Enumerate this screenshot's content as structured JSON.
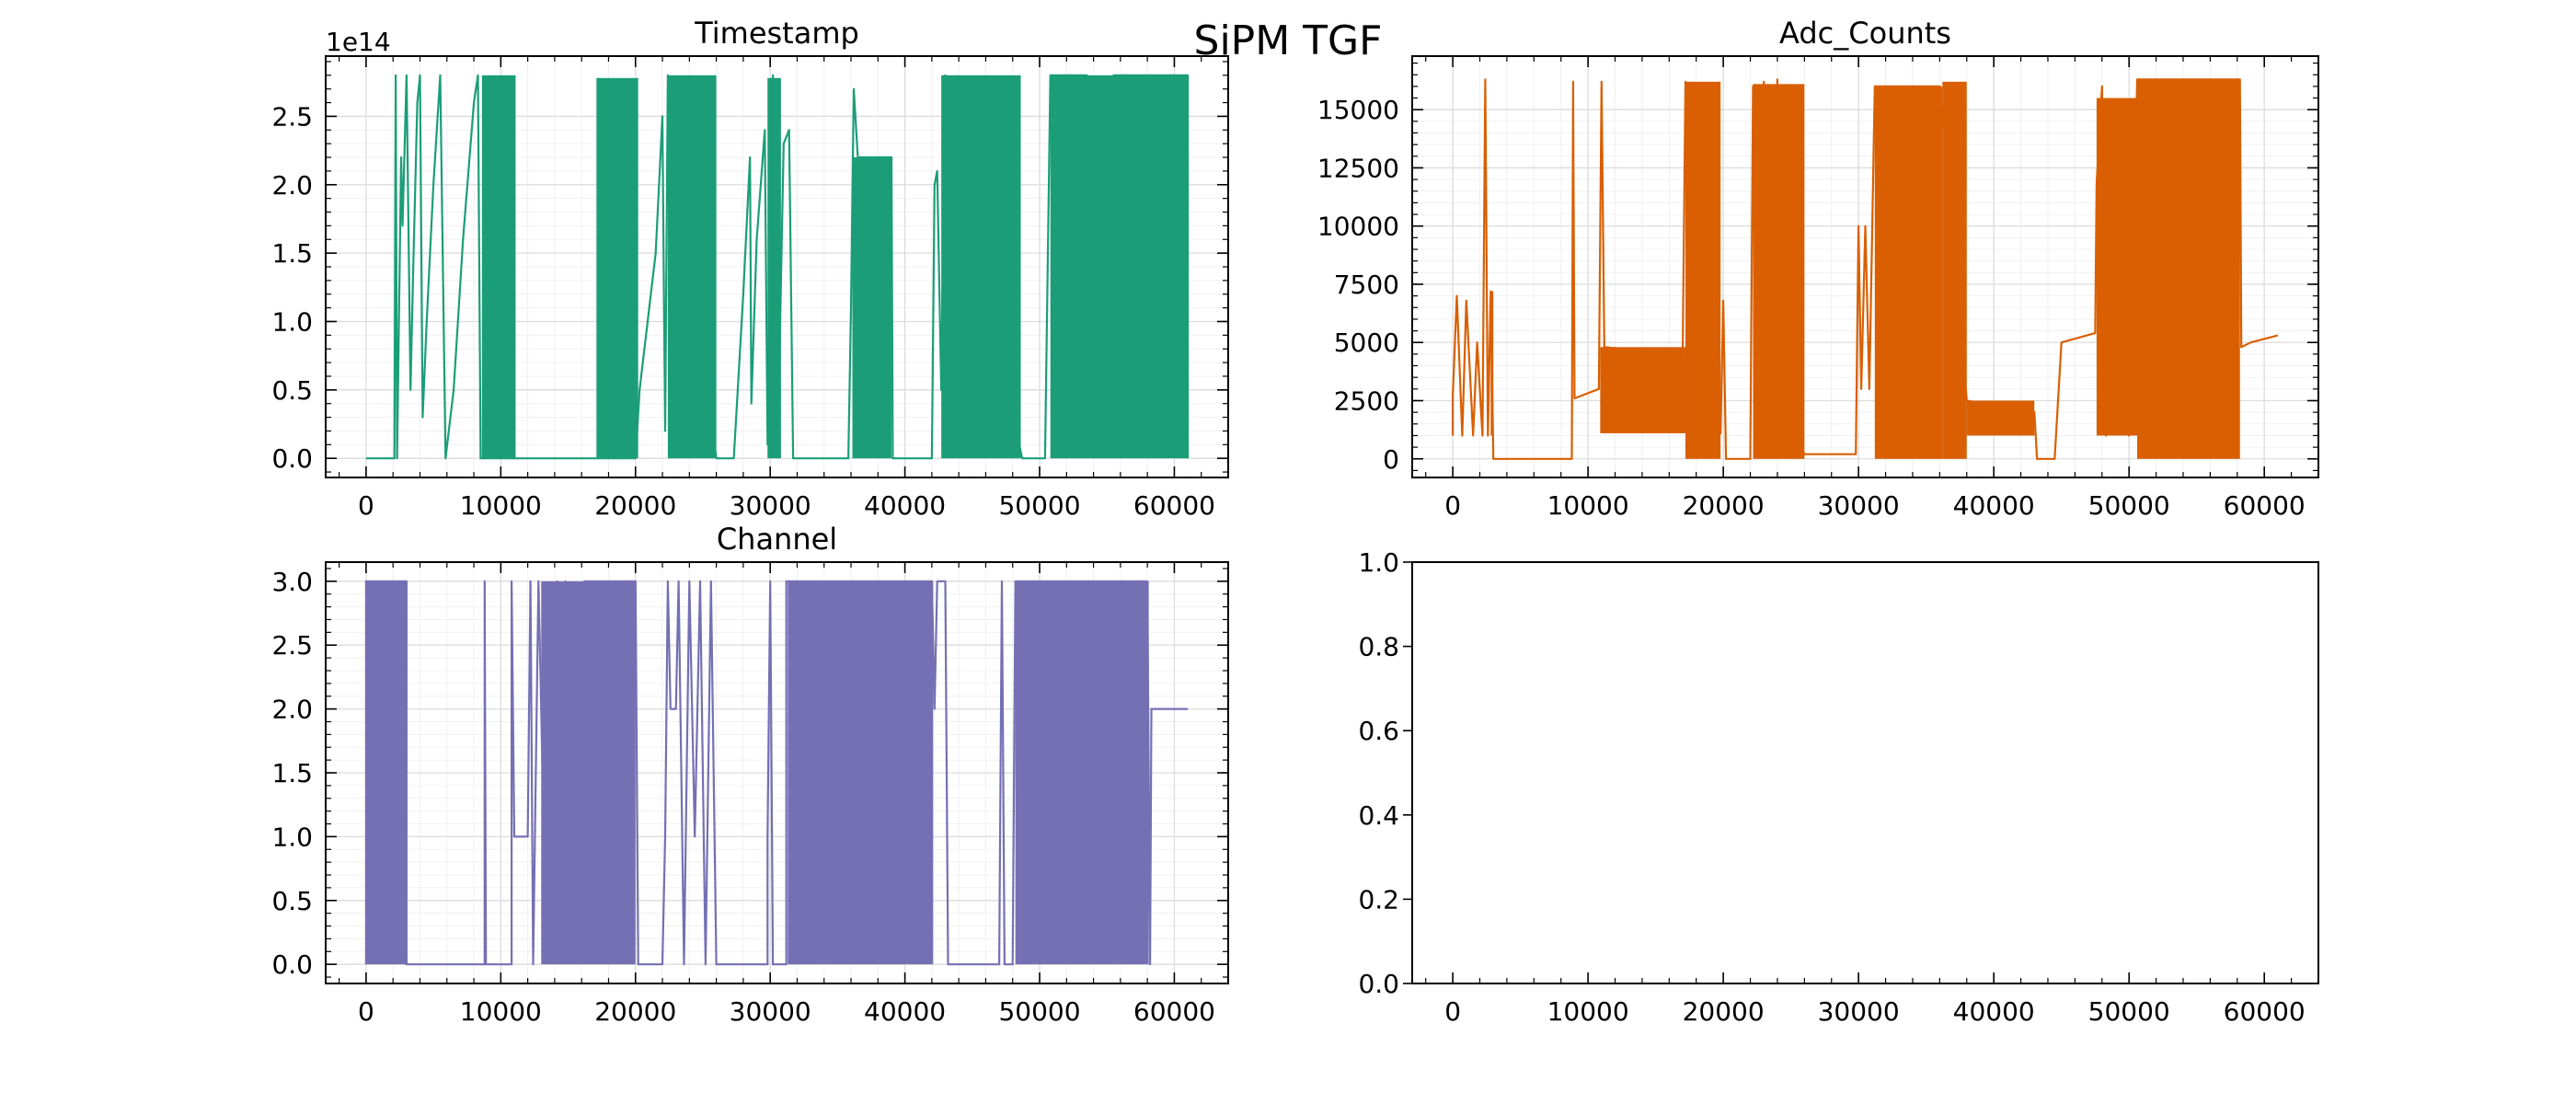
{
  "figure_title": "SiPM TGF",
  "colors": {
    "timestamp": "#1b9e77",
    "adc": "#d95f02",
    "channel": "#7570b3"
  },
  "chart_data": [
    {
      "id": "timestamp",
      "type": "line",
      "title": "Timestamp",
      "offset_label": "1e14",
      "xlim": [
        -3000,
        64000
      ],
      "ylim": [
        -0.14,
        2.94
      ],
      "xticks": [
        0,
        10000,
        20000,
        30000,
        40000,
        50000,
        60000
      ],
      "xticklabels": [
        "0",
        "10000",
        "20000",
        "30000",
        "40000",
        "50000",
        "60000"
      ],
      "yticks": [
        0,
        0.5,
        1.0,
        1.5,
        2.0,
        2.5
      ],
      "yticklabels": [
        "0.0",
        "0.5",
        "1.0",
        "1.5",
        "2.0",
        "2.5"
      ],
      "grid": true,
      "series": [
        {
          "values": [
            [
              0,
              0
            ],
            [
              2100,
              0
            ],
            [
              2200,
              2.8
            ],
            [
              2300,
              0
            ],
            [
              2600,
              2.2
            ],
            [
              2700,
              1.7
            ],
            [
              3000,
              2.8
            ],
            [
              3300,
              0.5
            ],
            [
              3500,
              1.4
            ],
            [
              3800,
              2.6
            ],
            [
              4000,
              2.8
            ],
            [
              4200,
              0.3
            ],
            [
              4500,
              1.0
            ],
            [
              5000,
              2.0
            ],
            [
              5500,
              2.8
            ],
            [
              5900,
              0
            ],
            [
              6500,
              0.5
            ],
            [
              7200,
              1.6
            ],
            [
              8000,
              2.6
            ],
            [
              8300,
              2.8
            ],
            [
              8500,
              0
            ],
            [
              11100,
              0
            ],
            [
              17000,
              0
            ],
            [
              20000,
              0
            ],
            [
              20300,
              0.5
            ],
            [
              21500,
              1.5
            ],
            [
              22000,
              2.5
            ],
            [
              22200,
              0.2
            ],
            [
              22400,
              2.8
            ],
            [
              26000,
              0
            ],
            [
              27300,
              0
            ],
            [
              28000,
              1.2
            ],
            [
              28500,
              2.2
            ],
            [
              28600,
              0.4
            ],
            [
              29000,
              1.6
            ],
            [
              29600,
              2.4
            ],
            [
              29800,
              0.1
            ],
            [
              30200,
              2.8
            ],
            [
              30600,
              0.3
            ],
            [
              31000,
              2.3
            ],
            [
              31400,
              2.4
            ],
            [
              31700,
              0
            ],
            [
              35800,
              0
            ],
            [
              36000,
              1.1
            ],
            [
              36200,
              2.7
            ],
            [
              36500,
              2.2
            ],
            [
              39000,
              2.2
            ],
            [
              39100,
              0
            ],
            [
              42000,
              0
            ],
            [
              42200,
              2.0
            ],
            [
              42400,
              2.1
            ],
            [
              42700,
              0.5
            ],
            [
              43000,
              2.8
            ],
            [
              48700,
              0
            ],
            [
              50400,
              0
            ],
            [
              50800,
              2.8
            ],
            [
              53500,
              2.8
            ],
            [
              54000,
              2.2
            ],
            [
              55200,
              2.2
            ],
            [
              55500,
              2.8
            ],
            [
              61000,
              2.8
            ],
            [
              61000,
              0
            ]
          ],
          "bands": [
            [
              8600,
              11100,
              0,
              2.8
            ],
            [
              17100,
              20200,
              0,
              2.78
            ],
            [
              22400,
              26000,
              0,
              2.8
            ],
            [
              29800,
              30800,
              0,
              2.78
            ],
            [
              36100,
              39000,
              0,
              2.2
            ],
            [
              42700,
              48600,
              0,
              2.8
            ],
            [
              50800,
              61000,
              0,
              2.8
            ]
          ]
        }
      ]
    },
    {
      "id": "adc",
      "type": "line",
      "title": "Adc_Counts",
      "xlim": [
        -3000,
        64000
      ],
      "ylim": [
        -800,
        17300
      ],
      "xticks": [
        0,
        10000,
        20000,
        30000,
        40000,
        50000,
        60000
      ],
      "xticklabels": [
        "0",
        "10000",
        "20000",
        "30000",
        "40000",
        "50000",
        "60000"
      ],
      "yticks": [
        0,
        2500,
        5000,
        7500,
        10000,
        12500,
        15000
      ],
      "yticklabels": [
        "0",
        "2500",
        "5000",
        "7500",
        "10000",
        "12500",
        "15000"
      ],
      "grid": true,
      "series": [
        {
          "values": [
            [
              0,
              1000
            ],
            [
              0,
              2700
            ],
            [
              300,
              7000
            ],
            [
              700,
              1000
            ],
            [
              1000,
              6800
            ],
            [
              1500,
              1000
            ],
            [
              1800,
              5000
            ],
            [
              2200,
              1000
            ],
            [
              2400,
              16300
            ],
            [
              2600,
              1000
            ],
            [
              2800,
              7200
            ],
            [
              3000,
              0
            ],
            [
              8800,
              0
            ],
            [
              8900,
              16200
            ],
            [
              9000,
              2600
            ],
            [
              10800,
              3000
            ],
            [
              11000,
              16200
            ],
            [
              11200,
              4800
            ],
            [
              17000,
              4500
            ],
            [
              17200,
              16200
            ],
            [
              19800,
              1100
            ],
            [
              20000,
              6800
            ],
            [
              20200,
              0
            ],
            [
              22000,
              0
            ],
            [
              22200,
              16000
            ],
            [
              22400,
              5500
            ],
            [
              23000,
              16200
            ],
            [
              23400,
              800
            ],
            [
              24000,
              16300
            ],
            [
              24500,
              5000
            ],
            [
              25000,
              15500
            ],
            [
              25500,
              1000
            ],
            [
              26000,
              200
            ],
            [
              29800,
              200
            ],
            [
              30000,
              10000
            ],
            [
              30200,
              3000
            ],
            [
              30500,
              10000
            ],
            [
              30800,
              3000
            ],
            [
              31200,
              16000
            ],
            [
              36000,
              16000
            ],
            [
              38000,
              2500
            ],
            [
              43000,
              2000
            ],
            [
              43200,
              0
            ],
            [
              44500,
              0
            ],
            [
              45000,
              5000
            ],
            [
              47500,
              5400
            ],
            [
              47600,
              11800
            ],
            [
              48000,
              16000
            ],
            [
              48300,
              1000
            ],
            [
              49500,
              8700
            ],
            [
              50000,
              1000
            ],
            [
              50600,
              16300
            ],
            [
              58200,
              16300
            ],
            [
              58300,
              4800
            ],
            [
              59000,
              5000
            ],
            [
              61000,
              5300
            ]
          ],
          "bands": [
            [
              2800,
              3000,
              1000,
              7200
            ],
            [
              10900,
              17200,
              1100,
              4800
            ],
            [
              17200,
              19800,
              0,
              16200
            ],
            [
              22200,
              26000,
              0,
              16100
            ],
            [
              31200,
              36200,
              0,
              16000
            ],
            [
              36200,
              38000,
              0,
              16200
            ],
            [
              38000,
              43000,
              1000,
              2500
            ],
            [
              47600,
              50600,
              1000,
              15500
            ],
            [
              50600,
              58200,
              0,
              16300
            ]
          ]
        }
      ]
    },
    {
      "id": "channel",
      "type": "line",
      "title": "Channel",
      "xlim": [
        -3000,
        64000
      ],
      "ylim": [
        -0.15,
        3.15
      ],
      "xticks": [
        0,
        10000,
        20000,
        30000,
        40000,
        50000,
        60000
      ],
      "xticklabels": [
        "0",
        "10000",
        "20000",
        "30000",
        "40000",
        "50000",
        "60000"
      ],
      "yticks": [
        0,
        0.5,
        1.0,
        1.5,
        2.0,
        2.5,
        3.0
      ],
      "yticklabels": [
        "0.0",
        "0.5",
        "1.0",
        "1.5",
        "2.0",
        "2.5",
        "3.0"
      ],
      "grid": true,
      "series": [
        {
          "values": [
            [
              0,
              0
            ],
            [
              0,
              3
            ],
            [
              3000,
              3
            ],
            [
              3000,
              0
            ],
            [
              8800,
              0
            ],
            [
              8800,
              3
            ],
            [
              8900,
              0
            ],
            [
              10800,
              0
            ],
            [
              10800,
              3
            ],
            [
              11000,
              1
            ],
            [
              12000,
              1
            ],
            [
              12200,
              3
            ],
            [
              12400,
              0
            ],
            [
              12800,
              3
            ],
            [
              13200,
              1
            ],
            [
              14000,
              1
            ],
            [
              14200,
              3
            ],
            [
              14400,
              1
            ],
            [
              14800,
              3
            ],
            [
              15200,
              1
            ],
            [
              16000,
              1
            ],
            [
              16200,
              3
            ],
            [
              20000,
              3
            ],
            [
              20200,
              0
            ],
            [
              22000,
              0
            ],
            [
              22200,
              1
            ],
            [
              22400,
              3
            ],
            [
              22600,
              2
            ],
            [
              23000,
              2
            ],
            [
              23200,
              3
            ],
            [
              23600,
              0
            ],
            [
              24000,
              3
            ],
            [
              24400,
              1
            ],
            [
              24800,
              3
            ],
            [
              25200,
              0
            ],
            [
              25600,
              3
            ],
            [
              26000,
              0
            ],
            [
              29800,
              0
            ],
            [
              29800,
              1
            ],
            [
              30000,
              3
            ],
            [
              30200,
              0
            ],
            [
              31200,
              0
            ],
            [
              31200,
              3
            ],
            [
              42000,
              3
            ],
            [
              42200,
              2
            ],
            [
              42400,
              3
            ],
            [
              43000,
              3
            ],
            [
              43200,
              0
            ],
            [
              47000,
              0
            ],
            [
              47200,
              3
            ],
            [
              47400,
              0
            ],
            [
              48000,
              0
            ],
            [
              48200,
              3
            ],
            [
              58000,
              3
            ],
            [
              58200,
              0
            ],
            [
              58300,
              2
            ],
            [
              61000,
              2
            ]
          ],
          "bands": [
            [
              0,
              3000,
              0,
              3
            ],
            [
              13000,
              20000,
              0,
              3
            ],
            [
              31300,
              42100,
              0,
              3
            ],
            [
              48200,
              58100,
              0,
              3
            ]
          ]
        }
      ]
    },
    {
      "id": "empty",
      "type": "line",
      "title": "",
      "xlim": [
        -3000,
        64000
      ],
      "ylim": [
        0,
        1
      ],
      "xticks": [
        0,
        10000,
        20000,
        30000,
        40000,
        50000,
        60000
      ],
      "xticklabels": [
        "0",
        "10000",
        "20000",
        "30000",
        "40000",
        "50000",
        "60000"
      ],
      "yticks": [
        0,
        0.2,
        0.4,
        0.6,
        0.8,
        1.0
      ],
      "yticklabels": [
        "0.0",
        "0.2",
        "0.4",
        "0.6",
        "0.8",
        "1.0"
      ],
      "grid": false,
      "series": []
    }
  ]
}
